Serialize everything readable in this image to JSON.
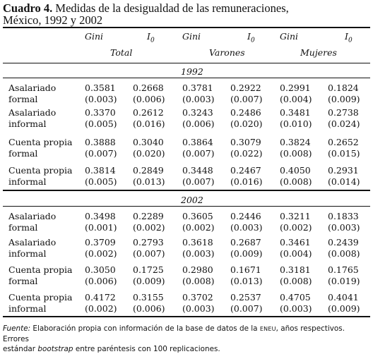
{
  "title": {
    "bold": "Cuadro 4.",
    "text": "Medidas de la desigualdad de las remuneraciones,",
    "line2": "México, 1992 y 2002"
  },
  "header": {
    "metrics": [
      "Gini",
      "I",
      "Gini",
      "I",
      "Gini",
      "I"
    ],
    "metric_subscript": "0",
    "groups": [
      "Total",
      "Varones",
      "Mujeres"
    ]
  },
  "sections": [
    {
      "year": "1992",
      "rows": [
        {
          "label1": "Asalariado",
          "label2": "formal",
          "values": [
            "0.3581",
            "0.2668",
            "0.3781",
            "0.2922",
            "0.2991",
            "0.1824"
          ],
          "errors": [
            "(0.003)",
            "(0.006)",
            "(0.003)",
            "(0.007)",
            "(0.004)",
            "(0.009)"
          ]
        },
        {
          "label1": "Asalariado",
          "label2": "informal",
          "values": [
            "0.3370",
            "0.2612",
            "0.3243",
            "0.2486",
            "0.3481",
            "0.2738"
          ],
          "errors": [
            "(0.005)",
            "(0.016)",
            "(0.006)",
            "(0.020)",
            "(0.010)",
            "(0.024)"
          ]
        },
        {
          "label1": "Cuenta propia",
          "label2": "formal",
          "values": [
            "0.3888",
            "0.3040",
            "0.3864",
            "0.3079",
            "0.3824",
            "0.2652"
          ],
          "errors": [
            "(0.007)",
            "(0.020)",
            "(0.007)",
            "(0.022)",
            "(0.008)",
            "(0.015)"
          ]
        },
        {
          "label1": "Cuenta propia",
          "label2": "informal",
          "values": [
            "0.3814",
            "0.2849",
            "0.3448",
            "0.2467",
            "0.4050",
            "0.2931"
          ],
          "errors": [
            "(0.005)",
            "(0.013)",
            "(0.007)",
            "(0.016)",
            "(0.008)",
            "(0.014)"
          ]
        }
      ]
    },
    {
      "year": "2002",
      "rows": [
        {
          "label1": "Asalariado",
          "label2": "formal",
          "values": [
            "0.3498",
            "0.2289",
            "0.3605",
            "0.2446",
            "0.3211",
            "0.1833"
          ],
          "errors": [
            "(0.001)",
            "(0.002)",
            "(0.002)",
            "(0.003)",
            "(0.002)",
            "(0.003)"
          ]
        },
        {
          "label1": "Asalariado",
          "label2": "informal",
          "values": [
            "0.3709",
            "0.2793",
            "0.3618",
            "0.2687",
            "0.3461",
            "0.2439"
          ],
          "errors": [
            "(0.002)",
            "(0.007)",
            "(0.003)",
            "(0.009)",
            "(0.004)",
            "(0.008)"
          ]
        },
        {
          "label1": "Cuenta propia",
          "label2": "formal",
          "values": [
            "0.3050",
            "0.1725",
            "0.2980",
            "0.1671",
            "0.3181",
            "0.1765"
          ],
          "errors": [
            "(0.006)",
            "(0.009)",
            "(0.008)",
            "(0.013)",
            "(0.008)",
            "(0.019)"
          ]
        },
        {
          "label1": "Cuenta propia",
          "label2": "informal",
          "values": [
            "0.4172",
            "0.3155",
            "0.3702",
            "0.2537",
            "0.4705",
            "0.4041"
          ],
          "errors": [
            "(0.002)",
            "(0.006)",
            "(0.003)",
            "(0.007)",
            "(0.003)",
            "(0.009)"
          ]
        }
      ]
    }
  ],
  "footnote": {
    "label": "Fuente:",
    "text1": "Elaboración propia con información de la base de datos de la",
    "abbr": "ENEU",
    "text2": ", años respectivos. Errores",
    "line2_pre": "estándar",
    "line2_italic": "bootstrap",
    "line2_post": "entre paréntesis con 100 replicaciones."
  }
}
